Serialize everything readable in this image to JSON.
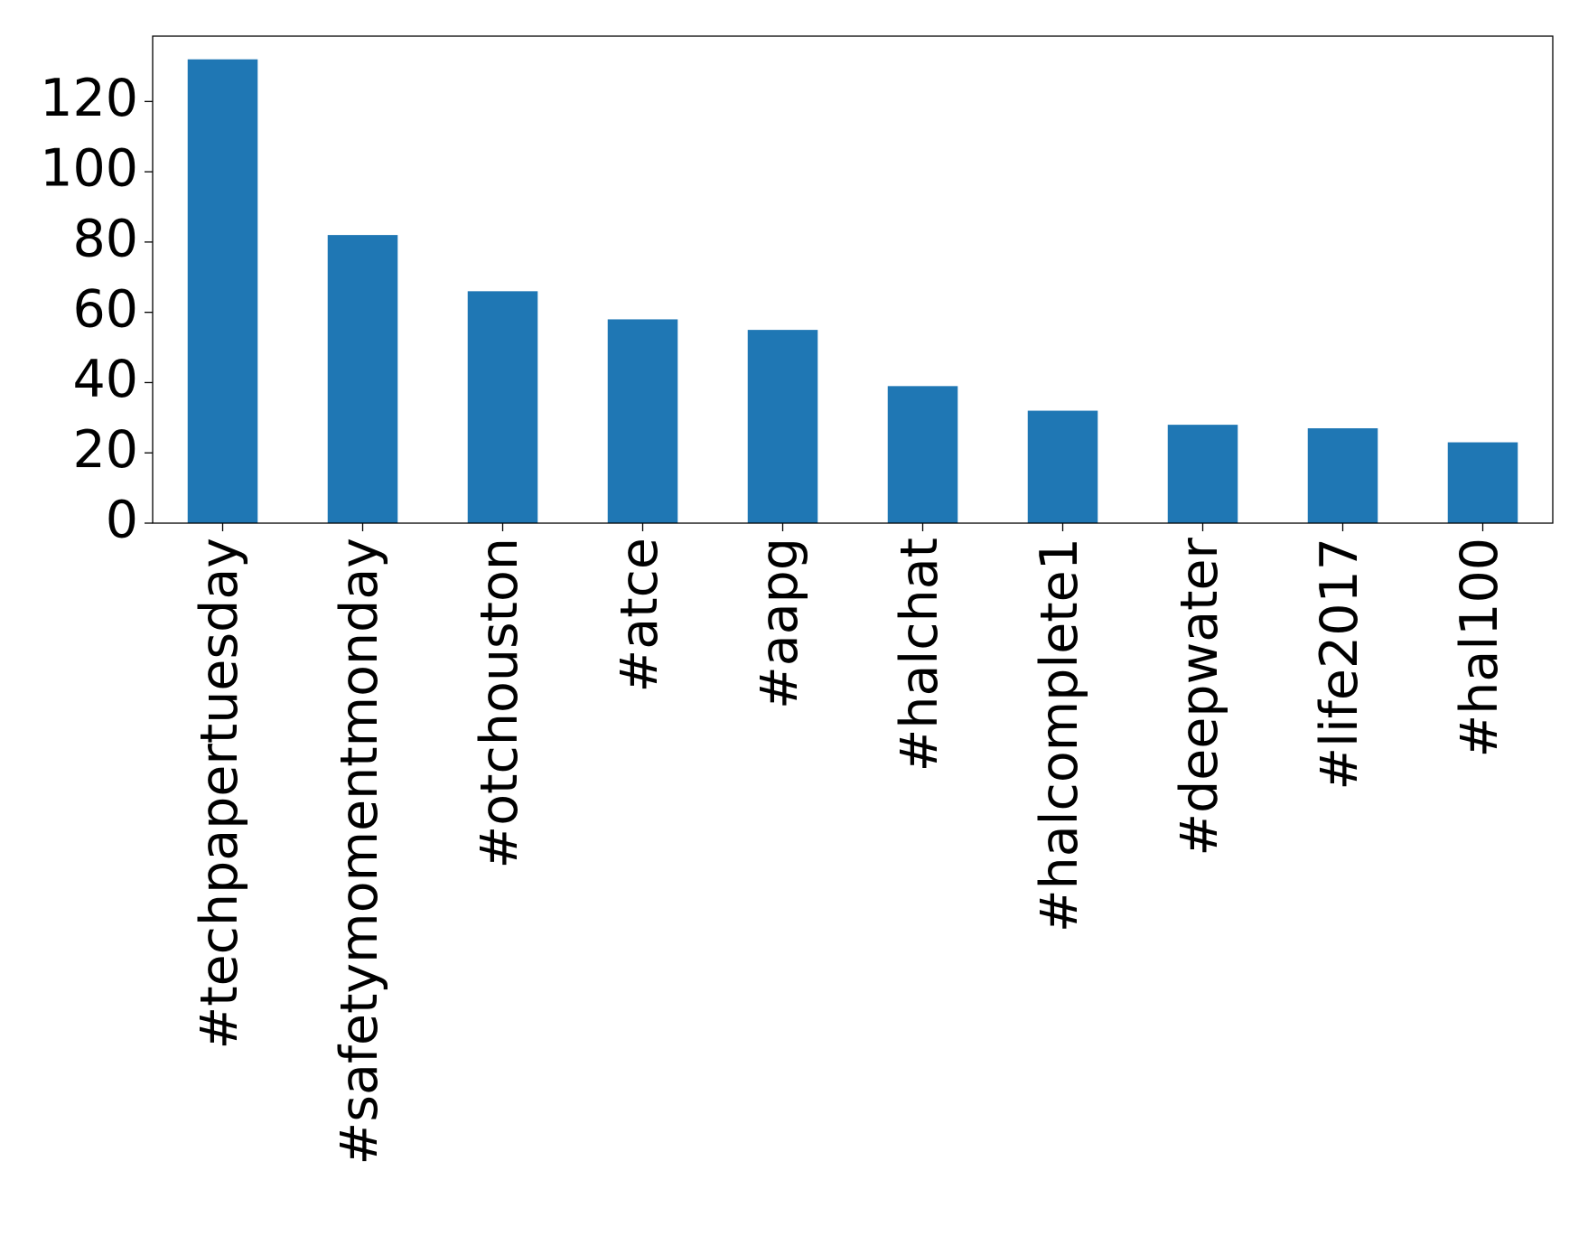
{
  "chart_data": {
    "type": "bar",
    "categories": [
      "#techpapertuesday",
      "#safetymomentmonday",
      "#otchouston",
      "#atce",
      "#aapg",
      "#halchat",
      "#halcomplete1",
      "#deepwater",
      "#life2017",
      "#hal100"
    ],
    "values": [
      132,
      82,
      66,
      58,
      55,
      39,
      32,
      28,
      27,
      23
    ],
    "color": "#1f77b4",
    "ylim": [
      0,
      138.6
    ],
    "yticks": [
      0,
      20,
      40,
      60,
      80,
      100,
      120
    ],
    "grid": false
  }
}
